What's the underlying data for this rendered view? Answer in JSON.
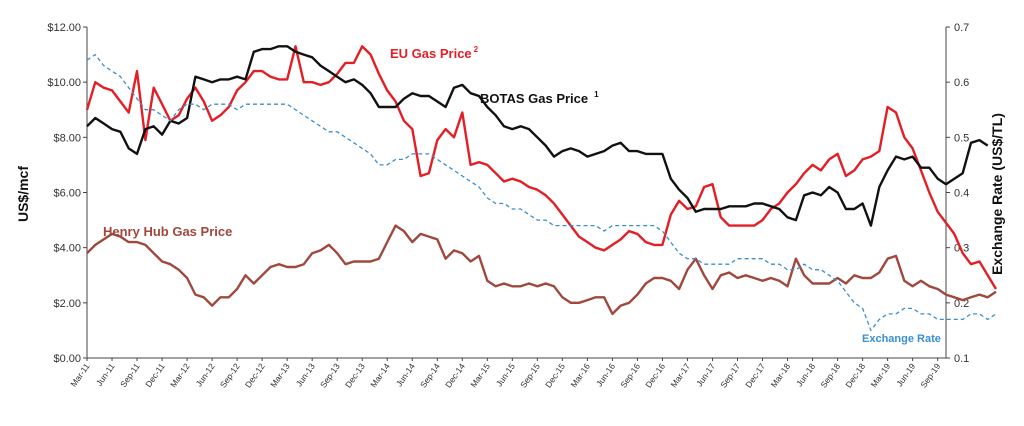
{
  "chart_data": {
    "type": "line",
    "y_left_label": "US$/mcf",
    "y_right_label": "Exchange Rate  (US$/TL)",
    "y_left_ticks": [
      "$0.00",
      "$2.00",
      "$4.00",
      "$6.00",
      "$8.00",
      "$10.00",
      "$12.00"
    ],
    "y_right_ticks": [
      "0.1",
      "0.2",
      "0.3",
      "0.4",
      "0.5",
      "0.6",
      "0.7"
    ],
    "ylim_left": [
      0,
      12
    ],
    "ylim_right": [
      0.1,
      0.7
    ],
    "x_start": "2011-03",
    "x_end": "2019-10",
    "x_tick_labels": [
      "Mar-11",
      "Jun-11",
      "Sep-11",
      "Dec-11",
      "Mar-12",
      "Jun-12",
      "Sep-12",
      "Dec-12",
      "Mar-13",
      "Jun-13",
      "Sep-13",
      "Dec-13",
      "Mar-14",
      "Jun-14",
      "Sep-14",
      "Dec-14",
      "Mar-15",
      "Jun-15",
      "Sep-15",
      "Dec-15",
      "Mar-16",
      "Jun-16",
      "Sep-16",
      "Dec-16",
      "Mar-17",
      "Jun-17",
      "Sep-17",
      "Dec-17",
      "Mar-18",
      "Jun-18",
      "Sep-18",
      "Dec-18",
      "Mar-19",
      "Jun-19",
      "Sep-19"
    ],
    "grid": false,
    "series": [
      {
        "name": "EU Gas Price",
        "name_superscript": "2",
        "axis": "left",
        "color": "#e31e24",
        "dash": "solid",
        "values": [
          9.0,
          10.0,
          9.8,
          9.7,
          9.3,
          8.9,
          10.4,
          7.9,
          9.8,
          9.2,
          8.6,
          8.8,
          9.4,
          9.8,
          9.3,
          8.6,
          8.8,
          9.1,
          9.7,
          10.0,
          10.4,
          10.4,
          10.2,
          10.1,
          10.1,
          11.3,
          10.0,
          10.0,
          9.9,
          10.0,
          10.3,
          10.7,
          10.7,
          11.3,
          11.0,
          10.3,
          9.7,
          9.3,
          8.6,
          8.3,
          6.6,
          6.7,
          7.9,
          8.3,
          8.0,
          8.9,
          7.0,
          7.1,
          7.0,
          6.7,
          6.4,
          6.5,
          6.4,
          6.2,
          6.1,
          5.9,
          5.6,
          5.2,
          4.8,
          4.4,
          4.2,
          4.0,
          3.9,
          4.1,
          4.3,
          4.6,
          4.5,
          4.2,
          4.1,
          4.1,
          5.2,
          5.7,
          5.4,
          5.5,
          6.2,
          6.3,
          5.1,
          4.8,
          4.8,
          4.8,
          4.8,
          5.0,
          5.4,
          5.6,
          6.0,
          6.3,
          6.7,
          7.0,
          6.8,
          7.2,
          7.4,
          6.6,
          6.8,
          7.2,
          7.3,
          7.5,
          9.1,
          8.9,
          8.0,
          7.6,
          6.8,
          6.0,
          5.3,
          4.9,
          4.5,
          3.8,
          3.4,
          3.5,
          3.0,
          2.5
        ]
      },
      {
        "name": "BOTAS Gas Price",
        "name_superscript": "1",
        "axis": "left",
        "color": "#111111",
        "dash": "solid",
        "values": [
          8.4,
          8.7,
          8.5,
          8.3,
          8.2,
          7.6,
          7.4,
          8.3,
          8.4,
          8.1,
          8.6,
          8.5,
          8.7,
          10.2,
          10.1,
          10.0,
          10.1,
          10.1,
          10.2,
          10.1,
          11.1,
          11.2,
          11.2,
          11.3,
          11.3,
          11.1,
          11.0,
          10.9,
          10.6,
          10.4,
          10.2,
          10.0,
          10.1,
          9.9,
          9.6,
          9.1,
          9.1,
          9.1,
          9.4,
          9.6,
          9.5,
          9.5,
          9.3,
          9.1,
          9.8,
          9.9,
          9.6,
          9.5,
          9.1,
          8.8,
          8.4,
          8.3,
          8.4,
          8.3,
          8.0,
          7.7,
          7.3,
          7.5,
          7.6,
          7.5,
          7.3,
          7.4,
          7.5,
          7.7,
          7.8,
          7.5,
          7.5,
          7.4,
          7.4,
          7.4,
          6.5,
          6.1,
          5.8,
          5.3,
          5.4,
          5.4,
          5.4,
          5.5,
          5.5,
          5.5,
          5.6,
          5.6,
          5.5,
          5.4,
          5.1,
          5.0,
          5.9,
          6.0,
          5.9,
          6.2,
          6.0,
          5.4,
          5.4,
          5.6,
          4.8,
          6.2,
          6.8,
          7.3,
          7.2,
          7.3,
          6.9,
          6.9,
          6.5,
          6.3,
          6.5,
          6.7,
          7.8,
          7.9,
          7.7
        ]
      },
      {
        "name": "Henry Hub Gas Price",
        "axis": "left",
        "color": "#a0483d",
        "dash": "solid",
        "values": [
          3.8,
          4.1,
          4.3,
          4.5,
          4.4,
          4.2,
          4.2,
          4.1,
          3.8,
          3.5,
          3.4,
          3.2,
          2.9,
          2.3,
          2.2,
          1.9,
          2.2,
          2.2,
          2.5,
          3.0,
          2.7,
          3.0,
          3.3,
          3.4,
          3.3,
          3.3,
          3.4,
          3.8,
          3.9,
          4.1,
          3.8,
          3.4,
          3.5,
          3.5,
          3.5,
          3.6,
          4.2,
          4.8,
          4.6,
          4.2,
          4.5,
          4.4,
          4.3,
          3.6,
          3.9,
          3.8,
          3.5,
          3.7,
          2.8,
          2.6,
          2.7,
          2.6,
          2.6,
          2.7,
          2.6,
          2.7,
          2.6,
          2.2,
          2.0,
          2.0,
          2.1,
          2.2,
          2.2,
          1.6,
          1.9,
          2.0,
          2.3,
          2.7,
          2.9,
          2.9,
          2.8,
          2.5,
          3.2,
          3.6,
          3.0,
          2.5,
          3.0,
          3.1,
          2.9,
          3.0,
          2.9,
          2.8,
          2.9,
          2.8,
          2.6,
          3.6,
          3.0,
          2.7,
          2.7,
          2.7,
          2.9,
          2.7,
          3.0,
          2.9,
          2.9,
          3.1,
          3.6,
          3.7,
          2.8,
          2.6,
          2.8,
          2.6,
          2.5,
          2.3,
          2.2,
          2.1,
          2.2,
          2.3,
          2.2,
          2.4
        ]
      },
      {
        "name": "Exchange Rate",
        "axis": "right",
        "color": "#3a8fd0",
        "dash": "dashed",
        "values": [
          0.64,
          0.65,
          0.63,
          0.62,
          0.61,
          0.59,
          0.57,
          0.55,
          0.55,
          0.54,
          0.53,
          0.55,
          0.56,
          0.56,
          0.55,
          0.56,
          0.56,
          0.56,
          0.55,
          0.56,
          0.56,
          0.56,
          0.56,
          0.56,
          0.56,
          0.55,
          0.54,
          0.53,
          0.52,
          0.51,
          0.51,
          0.5,
          0.49,
          0.48,
          0.47,
          0.45,
          0.45,
          0.46,
          0.46,
          0.47,
          0.47,
          0.47,
          0.46,
          0.45,
          0.44,
          0.43,
          0.42,
          0.41,
          0.39,
          0.38,
          0.38,
          0.37,
          0.37,
          0.36,
          0.35,
          0.35,
          0.34,
          0.34,
          0.34,
          0.34,
          0.34,
          0.34,
          0.33,
          0.34,
          0.34,
          0.34,
          0.34,
          0.34,
          0.34,
          0.33,
          0.31,
          0.29,
          0.28,
          0.28,
          0.27,
          0.27,
          0.27,
          0.27,
          0.28,
          0.28,
          0.28,
          0.28,
          0.27,
          0.27,
          0.26,
          0.26,
          0.27,
          0.26,
          0.26,
          0.25,
          0.24,
          0.22,
          0.2,
          0.19,
          0.15,
          0.17,
          0.18,
          0.18,
          0.19,
          0.19,
          0.18,
          0.18,
          0.17,
          0.17,
          0.17,
          0.17,
          0.18,
          0.18,
          0.17,
          0.18
        ]
      }
    ]
  }
}
